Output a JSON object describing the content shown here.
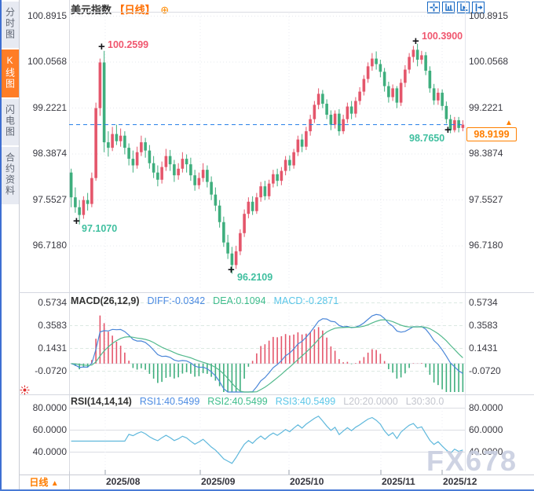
{
  "window": {
    "watermark": "FX678"
  },
  "sidebar": {
    "items": [
      {
        "label": "分时图",
        "active": false
      },
      {
        "label": "K线图",
        "active": true
      },
      {
        "label": "闪电图",
        "active": false
      },
      {
        "label": "合约资料",
        "active": false
      }
    ]
  },
  "header": {
    "symbol": "美元指数",
    "period": "【日线】",
    "expand_icon": "⊕"
  },
  "price_pane": {
    "axis_labels": [
      "100.8915",
      "100.0568",
      "99.2221",
      "98.3874",
      "97.5527",
      "96.7180"
    ],
    "current_price": "98.9199",
    "current_arrow": "▲",
    "marker_glyph": "+",
    "annotations": {
      "high_aug": "100.2599",
      "high_nov": "100.3900",
      "low_jul": "97.1070",
      "low_sep": "96.2109",
      "low_nov": "98.7650"
    }
  },
  "macd_pane": {
    "title": "MACD(26,12,9)",
    "diff_label": "DIFF:-0.0342",
    "dea_label": "DEA:0.1094",
    "macd_label": "MACD:-0.2871",
    "axis_labels": [
      "0.5734",
      "0.3583",
      "0.1431",
      "-0.0720"
    ]
  },
  "rsi_pane": {
    "title": "RSI(14,14,14)",
    "rsi1_label": "RSI1:40.5499",
    "rsi2_label": "RSI2:40.5499",
    "rsi3_label": "RSI3:40.5499",
    "l20_label": "L20:20.0000",
    "l30_label": "L30:30.0",
    "axis_labels": [
      "80.0000",
      "60.0000",
      "40.0000"
    ]
  },
  "x_axis": {
    "labels": [
      "2025/08",
      "2025/09",
      "2025/10",
      "2025/11",
      "2025/12"
    ],
    "period_selector": "日线",
    "period_arrow": "▲"
  },
  "colors": {
    "up": "#e4566b",
    "down": "#3eae7d",
    "diff_line": "#4a86d8",
    "dea_line": "#52b98c",
    "rsi_line": "#5fb8dc",
    "current_line": "#1e7be8",
    "accent_orange": "#ff7d26",
    "annotation_high": "#f0566e",
    "annotation_low": "#3fbf9f"
  },
  "chart_data": {
    "type": "candlestick",
    "title": "美元指数 日线 (US Dollar Index, daily)",
    "x_labels": [
      "2025/08",
      "2025/09",
      "2025/10",
      "2025/11",
      "2025/12"
    ],
    "month_tick_indices": [
      8,
      29,
      51,
      74,
      94
    ],
    "price_axis_values": [
      100.8915,
      100.0568,
      99.2221,
      98.3874,
      97.5527,
      96.718
    ],
    "current_price": 98.9199,
    "key_points": {
      "high_aug": 100.2599,
      "high_nov": 100.39,
      "low_jul": 97.107,
      "low_sep": 96.2109,
      "low_nov": 98.765,
      "last_close": 98.9199
    },
    "candles": [
      [
        98.05,
        98.12,
        97.42,
        97.6
      ],
      [
        97.6,
        97.78,
        97.32,
        97.42
      ],
      [
        97.42,
        97.55,
        97.107,
        97.28
      ],
      [
        97.28,
        97.62,
        97.21,
        97.55
      ],
      [
        97.55,
        97.68,
        97.36,
        97.48
      ],
      [
        97.48,
        98.05,
        97.42,
        97.95
      ],
      [
        97.95,
        99.32,
        97.9,
        99.22
      ],
      [
        99.22,
        100.12,
        99.08,
        100.05
      ],
      [
        100.05,
        100.2599,
        98.42,
        98.6
      ],
      [
        98.6,
        98.8,
        98.34,
        98.5
      ],
      [
        98.5,
        98.88,
        98.44,
        98.75
      ],
      [
        98.75,
        98.92,
        98.55,
        98.62
      ],
      [
        98.62,
        98.85,
        98.52,
        98.72
      ],
      [
        98.72,
        98.8,
        98.38,
        98.5
      ],
      [
        98.5,
        98.58,
        98.18,
        98.3
      ],
      [
        98.3,
        98.45,
        98.05,
        98.18
      ],
      [
        98.18,
        98.52,
        98.12,
        98.42
      ],
      [
        98.42,
        98.72,
        98.35,
        98.6
      ],
      [
        98.6,
        98.68,
        98.32,
        98.45
      ],
      [
        98.45,
        98.55,
        98.12,
        98.22
      ],
      [
        98.22,
        98.35,
        97.95,
        98.05
      ],
      [
        98.05,
        98.18,
        97.8,
        97.92
      ],
      [
        97.92,
        98.25,
        97.85,
        98.15
      ],
      [
        98.15,
        98.48,
        98.08,
        98.35
      ],
      [
        98.35,
        98.46,
        98.08,
        98.2
      ],
      [
        98.2,
        98.28,
        97.88,
        98.0
      ],
      [
        98.0,
        98.22,
        97.92,
        98.12
      ],
      [
        98.12,
        98.42,
        98.05,
        98.3
      ],
      [
        98.3,
        98.38,
        98.05,
        98.2
      ],
      [
        98.2,
        98.32,
        97.9,
        98.0
      ],
      [
        98.0,
        98.1,
        97.72,
        97.82
      ],
      [
        97.82,
        98.05,
        97.75,
        97.95
      ],
      [
        97.95,
        98.22,
        97.88,
        98.1
      ],
      [
        98.1,
        98.18,
        97.78,
        97.88
      ],
      [
        97.88,
        97.98,
        97.55,
        97.65
      ],
      [
        97.65,
        97.78,
        97.35,
        97.45
      ],
      [
        97.45,
        97.55,
        97.05,
        97.15
      ],
      [
        97.15,
        97.25,
        96.7,
        96.78
      ],
      [
        96.78,
        96.92,
        96.48,
        96.58
      ],
      [
        96.58,
        96.7,
        96.2109,
        96.37
      ],
      [
        96.37,
        96.72,
        96.3,
        96.62
      ],
      [
        96.62,
        97.02,
        96.55,
        96.95
      ],
      [
        96.95,
        97.38,
        96.88,
        97.3
      ],
      [
        97.3,
        97.6,
        97.22,
        97.52
      ],
      [
        97.52,
        97.62,
        97.28,
        97.35
      ],
      [
        97.35,
        97.68,
        97.3,
        97.6
      ],
      [
        97.6,
        97.88,
        97.52,
        97.8
      ],
      [
        97.8,
        97.9,
        97.55,
        97.62
      ],
      [
        97.62,
        97.92,
        97.56,
        97.85
      ],
      [
        97.85,
        98.1,
        97.78,
        98.02
      ],
      [
        98.02,
        98.12,
        97.8,
        97.9
      ],
      [
        97.9,
        98.15,
        97.82,
        98.08
      ],
      [
        98.08,
        98.35,
        98.0,
        98.28
      ],
      [
        98.28,
        98.36,
        98.08,
        98.18
      ],
      [
        98.18,
        98.48,
        98.12,
        98.42
      ],
      [
        98.42,
        98.72,
        98.35,
        98.65
      ],
      [
        98.65,
        98.75,
        98.42,
        98.52
      ],
      [
        98.52,
        98.88,
        98.46,
        98.8
      ],
      [
        98.8,
        99.1,
        98.72,
        99.02
      ],
      [
        99.02,
        99.35,
        98.95,
        99.28
      ],
      [
        99.28,
        99.58,
        99.2,
        99.48
      ],
      [
        99.48,
        99.55,
        99.22,
        99.3
      ],
      [
        99.3,
        99.38,
        99.02,
        99.1
      ],
      [
        99.1,
        99.18,
        98.82,
        98.92
      ],
      [
        98.92,
        99.18,
        98.85,
        99.12
      ],
      [
        99.12,
        99.2,
        98.72,
        98.8
      ],
      [
        98.8,
        99.1,
        98.75,
        99.02
      ],
      [
        99.02,
        99.32,
        98.95,
        99.25
      ],
      [
        99.25,
        99.35,
        99.02,
        99.12
      ],
      [
        99.12,
        99.42,
        99.05,
        99.35
      ],
      [
        99.35,
        99.6,
        99.28,
        99.52
      ],
      [
        99.52,
        99.82,
        99.45,
        99.75
      ],
      [
        99.75,
        100.05,
        99.68,
        99.98
      ],
      [
        99.98,
        100.22,
        99.9,
        100.12
      ],
      [
        100.12,
        100.25,
        99.92,
        100.02
      ],
      [
        100.02,
        100.1,
        99.78,
        99.88
      ],
      [
        99.88,
        99.95,
        99.52,
        99.62
      ],
      [
        99.62,
        99.7,
        99.32,
        99.42
      ],
      [
        99.42,
        99.65,
        99.35,
        99.58
      ],
      [
        99.58,
        99.62,
        99.22,
        99.32
      ],
      [
        99.32,
        99.75,
        99.26,
        99.68
      ],
      [
        99.68,
        100.0,
        99.6,
        99.92
      ],
      [
        99.92,
        100.22,
        99.85,
        100.15
      ],
      [
        100.15,
        100.35,
        100.05,
        100.28
      ],
      [
        100.28,
        100.39,
        99.98,
        100.1
      ],
      [
        100.1,
        100.26,
        100.02,
        100.18
      ],
      [
        100.18,
        100.24,
        99.82,
        99.9
      ],
      [
        99.9,
        99.98,
        99.5,
        99.58
      ],
      [
        99.58,
        99.66,
        99.28,
        99.36
      ],
      [
        99.36,
        99.58,
        99.28,
        99.5
      ],
      [
        99.5,
        99.56,
        99.18,
        99.26
      ],
      [
        99.26,
        99.34,
        98.94,
        99.02
      ],
      [
        99.02,
        99.1,
        98.765,
        98.82
      ],
      [
        98.82,
        99.06,
        98.78,
        99.0
      ],
      [
        99.0,
        99.06,
        98.78,
        98.86
      ],
      [
        98.86,
        99.0,
        98.8,
        98.9199
      ]
    ],
    "indicators": {
      "macd": {
        "params": [
          26,
          12,
          9
        ],
        "diff": -0.0342,
        "dea": 0.1094,
        "macd": -0.2871,
        "axis_values": [
          0.5734,
          0.3583,
          0.1431,
          -0.072
        ]
      },
      "rsi": {
        "params": [
          14,
          14,
          14
        ],
        "rsi1": 40.5499,
        "rsi2": 40.5499,
        "rsi3": 40.5499,
        "l20": 20.0,
        "l30": 30.0,
        "axis_values": [
          80.0,
          60.0,
          40.0
        ]
      }
    }
  }
}
